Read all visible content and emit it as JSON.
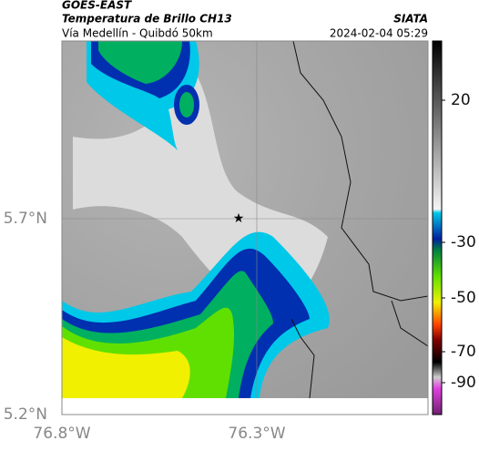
{
  "header": {
    "satellite": "GOES-EAST",
    "product": "Temperatura de Brillo CH13",
    "route": "Vía Medellín - Quibdó 50km",
    "source": "SIATA",
    "datetime": "2024-02-04 05:29"
  },
  "map": {
    "lat_labels": [
      "5.7°N",
      "5.2°N"
    ],
    "lon_labels": [
      "76.8°W",
      "76.3°W"
    ]
  },
  "colorbar": {
    "ticks": [
      20,
      -30,
      -50,
      -70,
      -90
    ]
  }
}
